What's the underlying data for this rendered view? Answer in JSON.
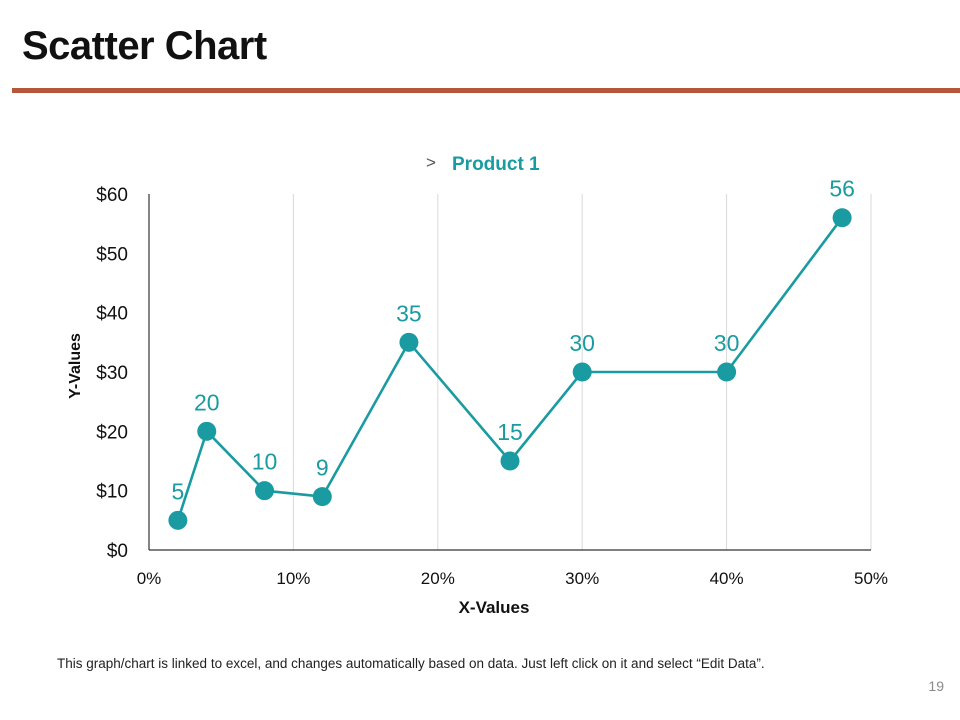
{
  "slide": {
    "title": "Scatter Chart",
    "footnote": "This graph/chart is linked to excel, and changes automatically  based on data. Just left click on it and select “Edit Data”.",
    "page_number": "19"
  },
  "colors": {
    "accent_rule": "#b5573a",
    "series": "#1a9ba1",
    "grid": "#d9d9d9",
    "axis": "#333333"
  },
  "chart_data": {
    "type": "scatter",
    "title": "",
    "legend": {
      "marker": ">",
      "label": "Product 1",
      "position": "top-center"
    },
    "xlabel": "X-Values",
    "ylabel": "Y-Values",
    "xlim": [
      0,
      50
    ],
    "ylim": [
      0,
      60
    ],
    "x_ticks": [
      {
        "value": 0,
        "label": "0%"
      },
      {
        "value": 10,
        "label": "10%"
      },
      {
        "value": 20,
        "label": "20%"
      },
      {
        "value": 30,
        "label": "30%"
      },
      {
        "value": 40,
        "label": "40%"
      },
      {
        "value": 50,
        "label": "50%"
      }
    ],
    "y_ticks": [
      {
        "value": 0,
        "label": "$0"
      },
      {
        "value": 10,
        "label": "$10"
      },
      {
        "value": 20,
        "label": "$20"
      },
      {
        "value": 30,
        "label": "$30"
      },
      {
        "value": 40,
        "label": "$40"
      },
      {
        "value": 50,
        "label": "$50"
      },
      {
        "value": 60,
        "label": "$60"
      }
    ],
    "grid": {
      "vertical": true,
      "horizontal": false
    },
    "series": [
      {
        "name": "Product 1",
        "x": [
          2,
          4,
          8,
          12,
          18,
          25,
          30,
          40,
          48
        ],
        "y": [
          5,
          20,
          10,
          9,
          35,
          15,
          30,
          30,
          56
        ],
        "labels": [
          "5",
          "20",
          "10",
          "9",
          "35",
          "15",
          "30",
          "30",
          "56"
        ]
      }
    ]
  }
}
